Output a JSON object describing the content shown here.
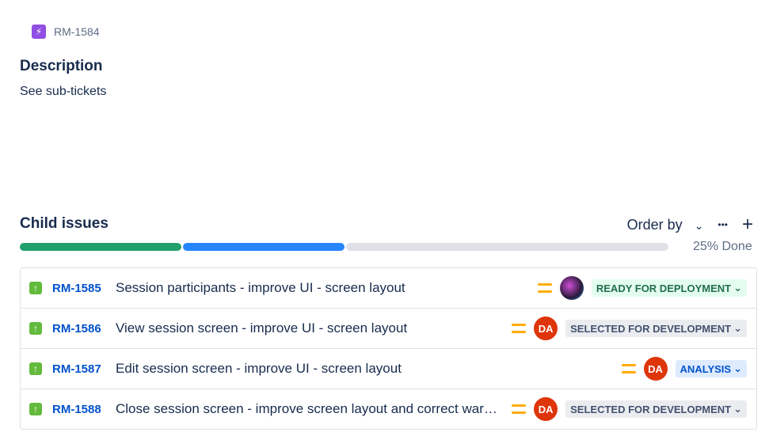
{
  "parent": {
    "key": "RM-1584",
    "icon": "epic-icon",
    "color": "#904ee2"
  },
  "description": {
    "heading": "Description",
    "text": "See sub-tickets"
  },
  "child": {
    "heading": "Child issues",
    "order_by": "Order by",
    "more": "•••",
    "add": "+",
    "done_label": "25% Done",
    "progress": {
      "done": 25,
      "in_progress": 25,
      "todo": 50,
      "colors": {
        "done": "#22a06b",
        "in_progress": "#2684ff",
        "todo": "#dfe1e6"
      }
    },
    "issues": [
      {
        "key": "RM-1585",
        "summary": "Session participants - improve UI - screen layout",
        "priority": "medium",
        "assignee": "",
        "avatar": "image",
        "status": "READY FOR DEPLOYMENT",
        "status_bg": "#e3fcef",
        "status_fg": "#216e4e"
      },
      {
        "key": "RM-1586",
        "summary": "View session screen - improve UI - screen layout",
        "priority": "medium",
        "assignee": "DA",
        "status": "SELECTED FOR DEVELOPMENT",
        "status_bg": "#ebecf0",
        "status_fg": "#42526e"
      },
      {
        "key": "RM-1587",
        "summary": "Edit session screen - improve UI - screen layout",
        "priority": "medium",
        "assignee": "DA",
        "status": "ANALYSIS",
        "status_bg": "#deebff",
        "status_fg": "#0052cc"
      },
      {
        "key": "RM-1588",
        "summary": "Close session screen - improve screen layout and correct warnings",
        "priority": "medium",
        "assignee": "DA",
        "status": "SELECTED FOR DEVELOPMENT",
        "status_bg": "#ebecf0",
        "status_fg": "#42526e"
      }
    ]
  }
}
